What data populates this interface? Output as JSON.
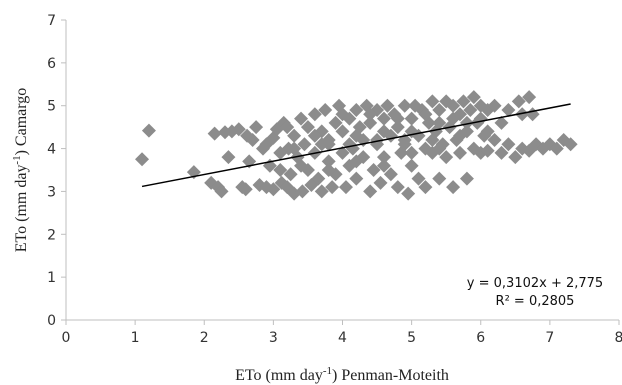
{
  "chart_data": {
    "type": "scatter",
    "xlabel": {
      "pre": "ETo (mm day",
      "sup": "-1",
      "post": ") Penman-Moteith"
    },
    "ylabel": {
      "pre": "ETo (mm day",
      "sup": "-1",
      "post": ")  Camargo"
    },
    "xlim": [
      0,
      8
    ],
    "ylim": [
      0,
      7
    ],
    "xticks": [
      0,
      1,
      2,
      3,
      4,
      5,
      6,
      7,
      8
    ],
    "yticks": [
      0,
      1,
      2,
      3,
      4,
      5,
      6,
      7
    ],
    "marker": "diamond",
    "marker_color": "#8c8c8c",
    "trendline": {
      "type": "linear",
      "slope": 0.3102,
      "intercept": 2.775,
      "x_range": [
        1.1,
        7.3
      ],
      "color": "#000000",
      "equation_text": "y = 0,3102x + 2,775",
      "r2_text": "R² = 0,2805"
    },
    "points": [
      [
        1.1,
        3.75
      ],
      [
        1.2,
        4.42
      ],
      [
        1.85,
        3.45
      ],
      [
        2.1,
        3.2
      ],
      [
        2.15,
        4.35
      ],
      [
        2.2,
        3.1
      ],
      [
        2.25,
        3.0
      ],
      [
        2.3,
        4.38
      ],
      [
        2.35,
        3.8
      ],
      [
        2.4,
        4.4
      ],
      [
        2.5,
        4.45
      ],
      [
        2.55,
        3.1
      ],
      [
        2.6,
        3.05
      ],
      [
        2.62,
        4.3
      ],
      [
        2.65,
        3.7
      ],
      [
        2.7,
        4.2
      ],
      [
        2.75,
        4.5
      ],
      [
        2.8,
        3.15
      ],
      [
        2.85,
        4.0
      ],
      [
        2.9,
        3.1
      ],
      [
        2.95,
        3.6
      ],
      [
        3.0,
        4.25
      ],
      [
        3.0,
        3.05
      ],
      [
        3.05,
        4.45
      ],
      [
        3.1,
        3.9
      ],
      [
        3.12,
        3.2
      ],
      [
        3.15,
        4.6
      ],
      [
        3.2,
        3.1
      ],
      [
        3.22,
        4.0
      ],
      [
        3.25,
        3.4
      ],
      [
        3.3,
        4.3
      ],
      [
        3.3,
        2.95
      ],
      [
        3.35,
        3.8
      ],
      [
        3.4,
        4.7
      ],
      [
        3.42,
        3.0
      ],
      [
        3.45,
        4.1
      ],
      [
        3.5,
        3.5
      ],
      [
        3.5,
        4.5
      ],
      [
        3.55,
        3.15
      ],
      [
        3.6,
        4.8
      ],
      [
        3.6,
        3.9
      ],
      [
        3.65,
        3.3
      ],
      [
        3.7,
        4.4
      ],
      [
        3.7,
        3.0
      ],
      [
        3.75,
        4.9
      ],
      [
        3.8,
        3.7
      ],
      [
        3.8,
        4.2
      ],
      [
        3.85,
        3.1
      ],
      [
        3.9,
        4.6
      ],
      [
        3.9,
        3.4
      ],
      [
        3.95,
        5.0
      ],
      [
        4.0,
        3.9
      ],
      [
        4.0,
        4.4
      ],
      [
        4.05,
        3.1
      ],
      [
        4.1,
        4.7
      ],
      [
        4.1,
        3.6
      ],
      [
        4.15,
        4.0
      ],
      [
        4.2,
        4.9
      ],
      [
        4.2,
        3.3
      ],
      [
        4.25,
        4.5
      ],
      [
        4.3,
        3.8
      ],
      [
        4.3,
        4.2
      ],
      [
        4.35,
        5.0
      ],
      [
        4.4,
        3.0
      ],
      [
        4.4,
        4.6
      ],
      [
        4.45,
        3.5
      ],
      [
        4.5,
        4.9
      ],
      [
        4.5,
        4.1
      ],
      [
        4.55,
        3.2
      ],
      [
        4.6,
        4.7
      ],
      [
        4.6,
        3.8
      ],
      [
        4.65,
        5.0
      ],
      [
        4.7,
        4.3
      ],
      [
        4.7,
        3.4
      ],
      [
        4.75,
        4.8
      ],
      [
        4.8,
        3.1
      ],
      [
        4.8,
        4.5
      ],
      [
        4.85,
        3.9
      ],
      [
        4.9,
        5.0
      ],
      [
        4.9,
        4.2
      ],
      [
        4.95,
        2.95
      ],
      [
        5.0,
        4.7
      ],
      [
        5.0,
        3.6
      ],
      [
        5.05,
        5.0
      ],
      [
        5.1,
        4.3
      ],
      [
        5.1,
        3.3
      ],
      [
        5.15,
        4.9
      ],
      [
        5.2,
        4.0
      ],
      [
        5.2,
        3.1
      ],
      [
        5.25,
        4.6
      ],
      [
        5.3,
        5.1
      ],
      [
        5.3,
        3.9
      ],
      [
        5.35,
        4.4
      ],
      [
        5.4,
        3.3
      ],
      [
        5.4,
        4.9
      ],
      [
        5.45,
        4.1
      ],
      [
        5.5,
        5.1
      ],
      [
        5.5,
        3.8
      ],
      [
        5.55,
        4.5
      ],
      [
        5.6,
        3.1
      ],
      [
        5.6,
        5.0
      ],
      [
        5.65,
        4.2
      ],
      [
        5.7,
        4.8
      ],
      [
        5.7,
        3.9
      ],
      [
        5.75,
        5.1
      ],
      [
        5.8,
        3.3
      ],
      [
        5.8,
        4.4
      ],
      [
        5.85,
        4.9
      ],
      [
        5.9,
        4.0
      ],
      [
        5.9,
        5.2
      ],
      [
        5.95,
        4.6
      ],
      [
        6.0,
        3.9
      ],
      [
        6.0,
        5.0
      ],
      [
        6.05,
        4.3
      ],
      [
        6.1,
        4.9
      ],
      [
        6.1,
        3.95
      ],
      [
        6.2,
        5.0
      ],
      [
        6.2,
        4.2
      ],
      [
        6.3,
        4.6
      ],
      [
        6.3,
        3.9
      ],
      [
        6.4,
        4.9
      ],
      [
        6.4,
        4.1
      ],
      [
        6.5,
        3.8
      ],
      [
        6.55,
        5.1
      ],
      [
        6.6,
        4.8
      ],
      [
        6.6,
        4.0
      ],
      [
        6.7,
        5.2
      ],
      [
        6.7,
        3.95
      ],
      [
        6.75,
        4.8
      ],
      [
        6.8,
        4.1
      ],
      [
        6.9,
        4.0
      ],
      [
        7.0,
        4.1
      ],
      [
        7.1,
        4.0
      ],
      [
        7.2,
        4.2
      ],
      [
        7.3,
        4.1
      ],
      [
        3.2,
        4.5
      ],
      [
        3.6,
        4.3
      ],
      [
        4.0,
        4.8
      ],
      [
        4.4,
        4.8
      ],
      [
        4.8,
        4.7
      ],
      [
        5.2,
        4.8
      ],
      [
        5.6,
        4.7
      ],
      [
        6.0,
        4.7
      ],
      [
        3.8,
        4.1
      ],
      [
        4.2,
        4.3
      ],
      [
        4.6,
        4.4
      ],
      [
        5.0,
        4.4
      ],
      [
        5.4,
        4.6
      ],
      [
        5.8,
        4.6
      ],
      [
        3.4,
        3.6
      ],
      [
        3.8,
        3.5
      ],
      [
        4.2,
        3.7
      ],
      [
        4.6,
        3.6
      ],
      [
        5.0,
        3.9
      ],
      [
        5.4,
        4.0
      ],
      [
        2.9,
        4.1
      ],
      [
        3.3,
        4.0
      ],
      [
        3.7,
        4.1
      ],
      [
        4.1,
        4.1
      ],
      [
        4.5,
        4.2
      ],
      [
        4.9,
        4.1
      ],
      [
        5.3,
        4.2
      ],
      [
        5.7,
        4.3
      ],
      [
        6.1,
        4.4
      ],
      [
        3.1,
        3.5
      ]
    ]
  }
}
